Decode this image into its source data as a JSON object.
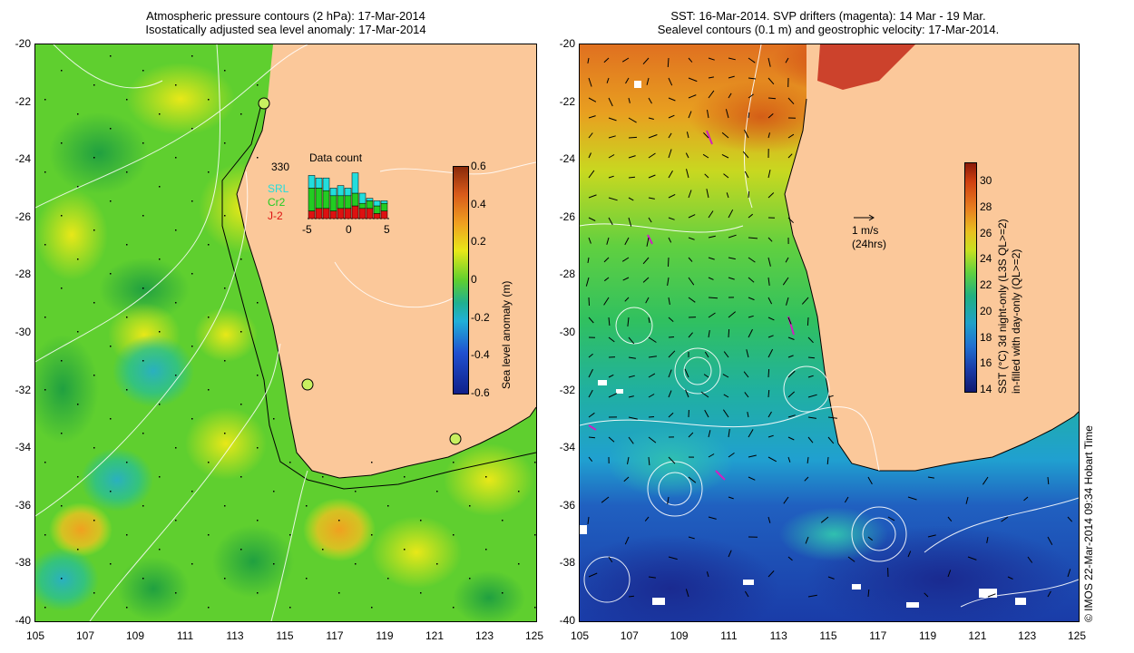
{
  "left_panel": {
    "title_line1": "Atmospheric pressure contours (2 hPa): 17-Mar-2014",
    "title_line2": "Isostatically adjusted sea level anomaly: 17-Mar-2014",
    "y_ticks": [
      "-20",
      "-22",
      "-24",
      "-26",
      "-28",
      "-30",
      "-32",
      "-34",
      "-36",
      "-38",
      "-40"
    ],
    "x_ticks": [
      "105",
      "107",
      "109",
      "111",
      "113",
      "115",
      "117",
      "119",
      "121",
      "123",
      "125"
    ],
    "colorbar": {
      "label": "Sea level anomaly (m)",
      "ticks": [
        "0.6",
        "0.4",
        "0.2",
        "0",
        "-0.2",
        "-0.4",
        "-0.6"
      ]
    },
    "inset": {
      "title": "Data count",
      "count": "330",
      "legend": [
        {
          "label": "SRL",
          "color": "#22dddd"
        },
        {
          "label": "Cr2",
          "color": "#22cc22"
        },
        {
          "label": "J-2",
          "color": "#dd1111"
        }
      ],
      "x_ticks": [
        "-5",
        "0",
        "5"
      ],
      "bars": [
        {
          "j2": 0.15,
          "cr2": 0.45,
          "srl": 0.25
        },
        {
          "j2": 0.2,
          "cr2": 0.4,
          "srl": 0.2
        },
        {
          "j2": 0.2,
          "cr2": 0.35,
          "srl": 0.25
        },
        {
          "j2": 0.15,
          "cr2": 0.3,
          "srl": 0.15
        },
        {
          "j2": 0.2,
          "cr2": 0.25,
          "srl": 0.2
        },
        {
          "j2": 0.2,
          "cr2": 0.25,
          "srl": 0.15
        },
        {
          "j2": 0.25,
          "cr2": 0.25,
          "srl": 0.4
        },
        {
          "j2": 0.2,
          "cr2": 0.1,
          "srl": 0.2
        },
        {
          "j2": 0.2,
          "cr2": 0.15,
          "srl": 0.05
        },
        {
          "j2": 0.1,
          "cr2": 0.15,
          "srl": 0.1
        },
        {
          "j2": 0.15,
          "cr2": 0.15,
          "srl": 0.05
        }
      ]
    }
  },
  "right_panel": {
    "title_line1": "SST: 16-Mar-2014. SVP drifters (magenta): 14 Mar - 19 Mar.",
    "title_line2": "Sealevel contours (0.1 m) and geostrophic velocity: 17-Mar-2014.",
    "y_ticks": [
      "-20",
      "-22",
      "-24",
      "-26",
      "-28",
      "-30",
      "-32",
      "-34",
      "-36",
      "-38",
      "-40"
    ],
    "x_ticks": [
      "105",
      "107",
      "109",
      "111",
      "113",
      "115",
      "117",
      "119",
      "121",
      "123",
      "125"
    ],
    "velocity_scale_line1": "1 m/s",
    "velocity_scale_line2": "(24hrs)",
    "colorbar": {
      "label_line1": "SST (°C)  3d night-only (L3S QL>=2)",
      "label_line2": "in-filled with day-only (QL>=2)",
      "ticks": [
        "30",
        "28",
        "26",
        "24",
        "22",
        "20",
        "18",
        "16",
        "14"
      ]
    }
  },
  "credit": "© IMOS 22-Mar-2014 09:34 Hobart Time",
  "colors": {
    "land": "#fbc89a",
    "sla_green": "#5fcf2f",
    "sst_warm": "#d8551a",
    "sst_cold": "#1a3ca8"
  }
}
